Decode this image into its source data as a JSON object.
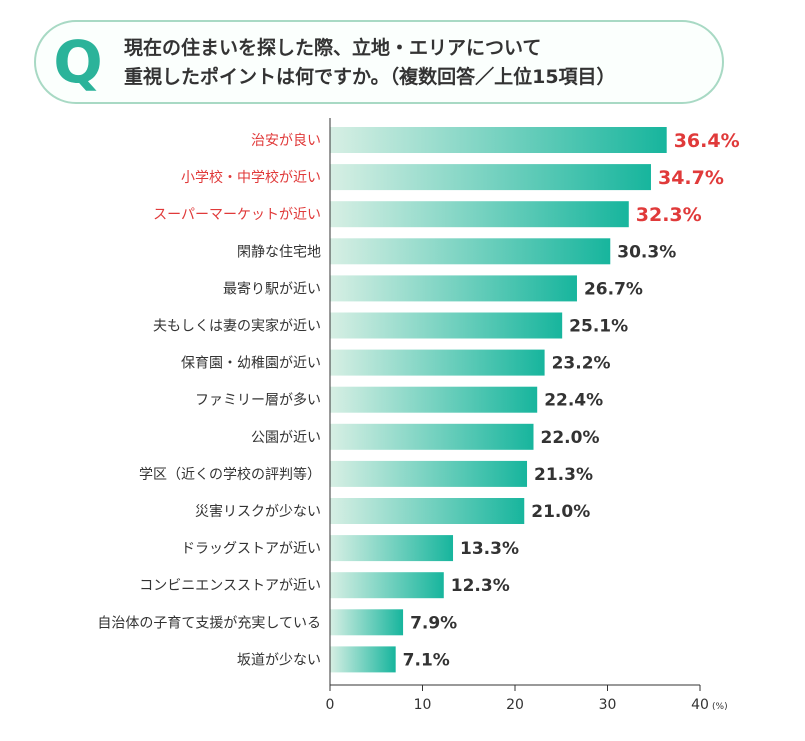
{
  "question": {
    "badge": "Q",
    "line1": "現在の住まいを探した際、立地・エリアについて",
    "line2": "重視したポイントは何ですか。（複数回答／上位15項目）"
  },
  "chart_data": {
    "type": "bar",
    "orientation": "horizontal",
    "categories": [
      "治安が良い",
      "小学校・中学校が近い",
      "スーパーマーケットが近い",
      "閑静な住宅地",
      "最寄り駅が近い",
      "夫もしくは妻の実家が近い",
      "保育園・幼稚園が近い",
      "ファミリー層が多い",
      "公園が近い",
      "学区（近くの学校の評判等）",
      "災害リスクが少ない",
      "ドラッグストアが近い",
      "コンビニエンスストアが近い",
      "自治体の子育て支援が充実している",
      "坂道が少ない"
    ],
    "values": [
      36.4,
      34.7,
      32.3,
      30.3,
      26.7,
      25.1,
      23.2,
      22.4,
      22.0,
      21.3,
      21.0,
      13.3,
      12.3,
      7.9,
      7.1
    ],
    "value_labels": [
      "36.4%",
      "34.7%",
      "32.3%",
      "30.3%",
      "26.7%",
      "25.1%",
      "23.2%",
      "22.4%",
      "22.0%",
      "21.3%",
      "21.0%",
      "13.3%",
      "12.3%",
      "7.9%",
      "7.1%"
    ],
    "highlighted_top": 3,
    "xlim": [
      0,
      40
    ],
    "xticks": [
      "0",
      "10",
      "20",
      "30",
      "40"
    ],
    "unit": "(%)",
    "grid": false,
    "colors": {
      "bar_start": "#d7efe4",
      "bar_end": "#17b59d",
      "highlight_text": "#e03a3a",
      "text": "#333333",
      "axis": "#333333"
    }
  }
}
